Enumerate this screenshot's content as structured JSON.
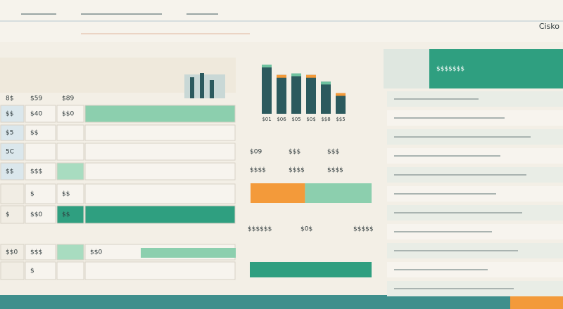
{
  "header": {
    "brand": "Cisko"
  },
  "table": {
    "columns": [
      "8$",
      "$59",
      "$89"
    ],
    "rows": [
      [
        "$$",
        "$40",
        "$$0",
        null
      ],
      [
        "$5",
        "$$",
        null,
        null
      ],
      [
        "5C",
        null,
        null,
        null
      ],
      [
        "$$",
        "$$$",
        null,
        null
      ],
      [
        null,
        "$",
        "$$",
        null
      ],
      [
        "$",
        "$$0",
        "$$",
        null
      ],
      [
        "$$0",
        "$$$",
        null,
        "$$0"
      ],
      [
        null,
        "$",
        null,
        null
      ]
    ]
  },
  "mini_chart": {
    "categories": [
      "$01",
      "$06",
      "$05",
      "$0$",
      "$$8",
      "$$5"
    ],
    "values": [
      95,
      75,
      78,
      75,
      62,
      40
    ]
  },
  "stats": {
    "items": [
      {
        "label": "$09",
        "value": "$$$$"
      },
      {
        "label": "$$$",
        "value": "$$$$"
      },
      {
        "label": "$$$",
        "value": "$$$$"
      }
    ]
  },
  "progress": {
    "values": [
      45,
      55
    ]
  },
  "details": {
    "items": [
      "$$$$$$",
      "$0$",
      "$$$$$"
    ]
  },
  "side_panel": {
    "title": "$$$$$$$"
  }
}
